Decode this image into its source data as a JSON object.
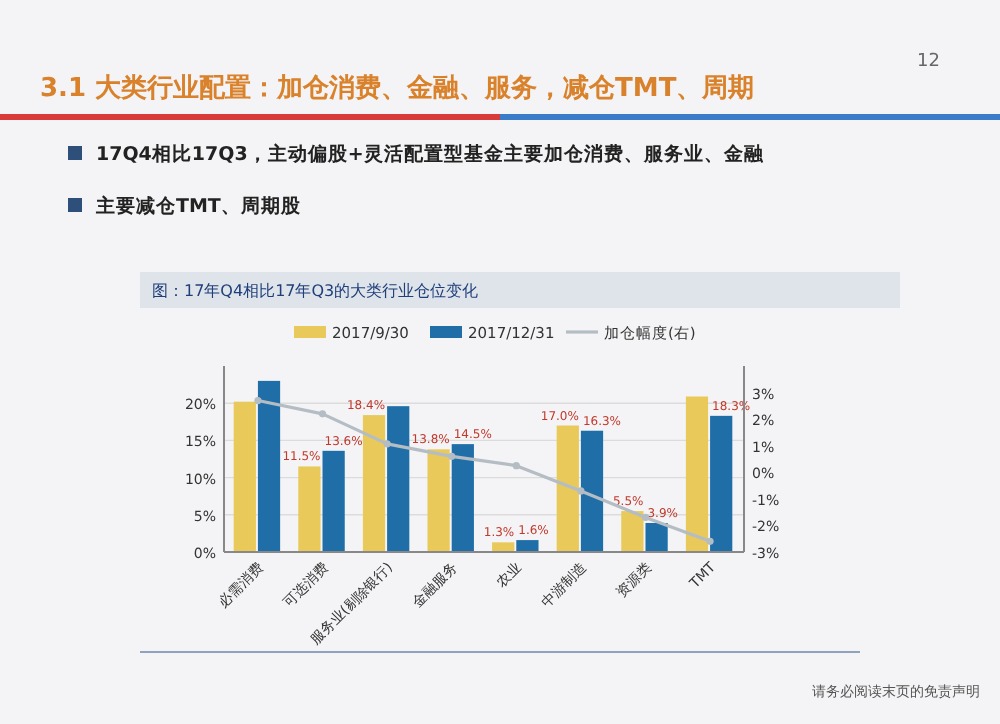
{
  "chart_data": {
    "type": "bar",
    "title": "图：17年Q4相比17年Q3的大类行业仓位变化",
    "annotations": [
      "3.1 大类行业配置：加仓消费、金融、服务，减仓TMT、周期",
      "17Q4相比17Q3，主动偏股+灵活配置型基金主要加仓消费、服务业、金融",
      "主要减仓TMT、周期股",
      "12",
      "请务必阅读末页的免责声明"
    ],
    "categories": [
      "必需消费",
      "可选消费",
      "服务业(剔除银行)",
      "金融服务",
      "农业",
      "中游制造",
      "资源类",
      "TMT"
    ],
    "series": [
      {
        "name": "2017/9/30",
        "color": "#e8c95a",
        "values": [
          20.2,
          11.5,
          18.4,
          13.8,
          1.3,
          17.0,
          5.5,
          20.9
        ],
        "value_labels": [
          null,
          "11.5%",
          "18.4%",
          "13.8%",
          "1.3%",
          "17.0%",
          "5.5%",
          null
        ]
      },
      {
        "name": "2017/12/31",
        "color": "#1f6ea8",
        "values": [
          23.0,
          13.6,
          19.6,
          14.5,
          1.6,
          16.3,
          3.9,
          18.3
        ],
        "value_labels": [
          null,
          "13.6%",
          null,
          "14.5%",
          "1.6%",
          "16.3%",
          "3.9%",
          "18.3%"
        ]
      },
      {
        "name": "加仓幅度(右)",
        "type": "line",
        "axis": "y2",
        "color": "#b4bcc4",
        "marker": "circle",
        "values": [
          2.7,
          2.2,
          1.07,
          0.6,
          0.25,
          -0.7,
          -1.7,
          -2.6
        ]
      }
    ],
    "ylim": [
      0,
      25
    ],
    "yticks": [
      {
        "value": 0,
        "label": "0%"
      },
      {
        "value": 5,
        "label": "5%"
      },
      {
        "value": 10,
        "label": "10%"
      },
      {
        "value": 15,
        "label": "15%"
      },
      {
        "value": 20,
        "label": "20%"
      }
    ],
    "y2lim": [
      -3,
      4
    ],
    "y2ticks": [
      {
        "value": -3,
        "label": "-3%"
      },
      {
        "value": -2,
        "label": "-2%"
      },
      {
        "value": -1,
        "label": "-1%"
      },
      {
        "value": 0,
        "label": "0%"
      },
      {
        "value": 1,
        "label": "1%"
      },
      {
        "value": 2,
        "label": "2%"
      },
      {
        "value": 3,
        "label": "3%"
      }
    ],
    "grid": "y",
    "legend": "top"
  }
}
